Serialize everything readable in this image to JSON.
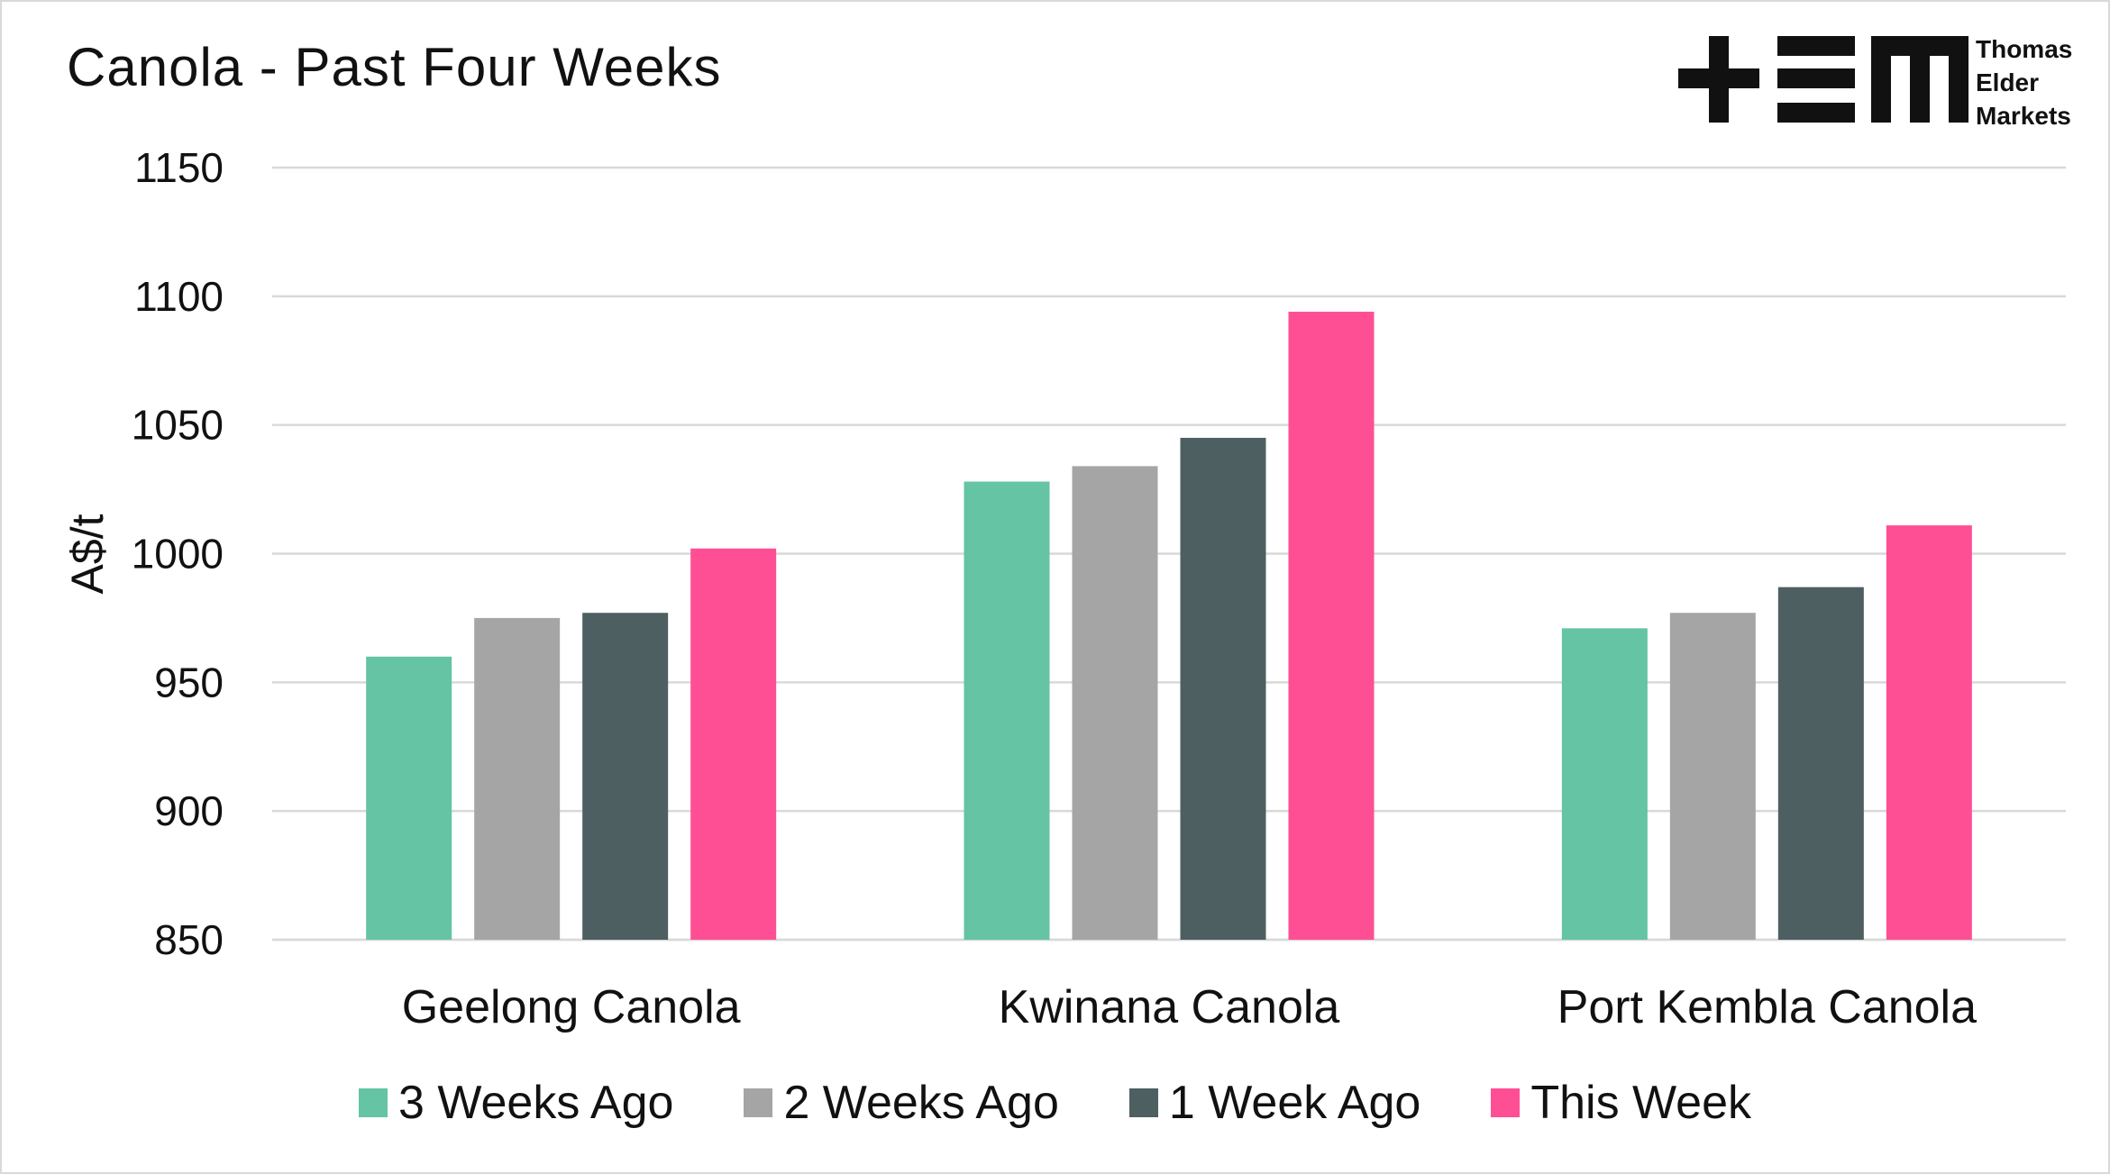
{
  "chart_data": {
    "type": "bar",
    "title": "Canola - Past Four Weeks",
    "xlabel": "",
    "ylabel": "A$/t",
    "ylim": [
      850,
      1150
    ],
    "yticks": [
      850,
      900,
      950,
      1000,
      1050,
      1100,
      1150
    ],
    "grid": true,
    "legend_position": "bottom",
    "categories": [
      "Geelong Canola",
      "Kwinana Canola",
      "Port Kembla Canola"
    ],
    "series": [
      {
        "name": "3 Weeks Ago",
        "color": "#64c4a4",
        "values": [
          960,
          1028,
          971
        ]
      },
      {
        "name": "2 Weeks Ago",
        "color": "#a5a5a5",
        "values": [
          975,
          1034,
          977
        ]
      },
      {
        "name": "1 Week Ago",
        "color": "#4d5f61",
        "values": [
          977,
          1045,
          987
        ]
      },
      {
        "name": "This Week",
        "color": "#ff4f94",
        "values": [
          1002,
          1094,
          1011
        ]
      }
    ]
  },
  "logo": {
    "lines": [
      "Thomas",
      "Elder",
      "Markets"
    ],
    "icon": "tem-logo-icon"
  }
}
